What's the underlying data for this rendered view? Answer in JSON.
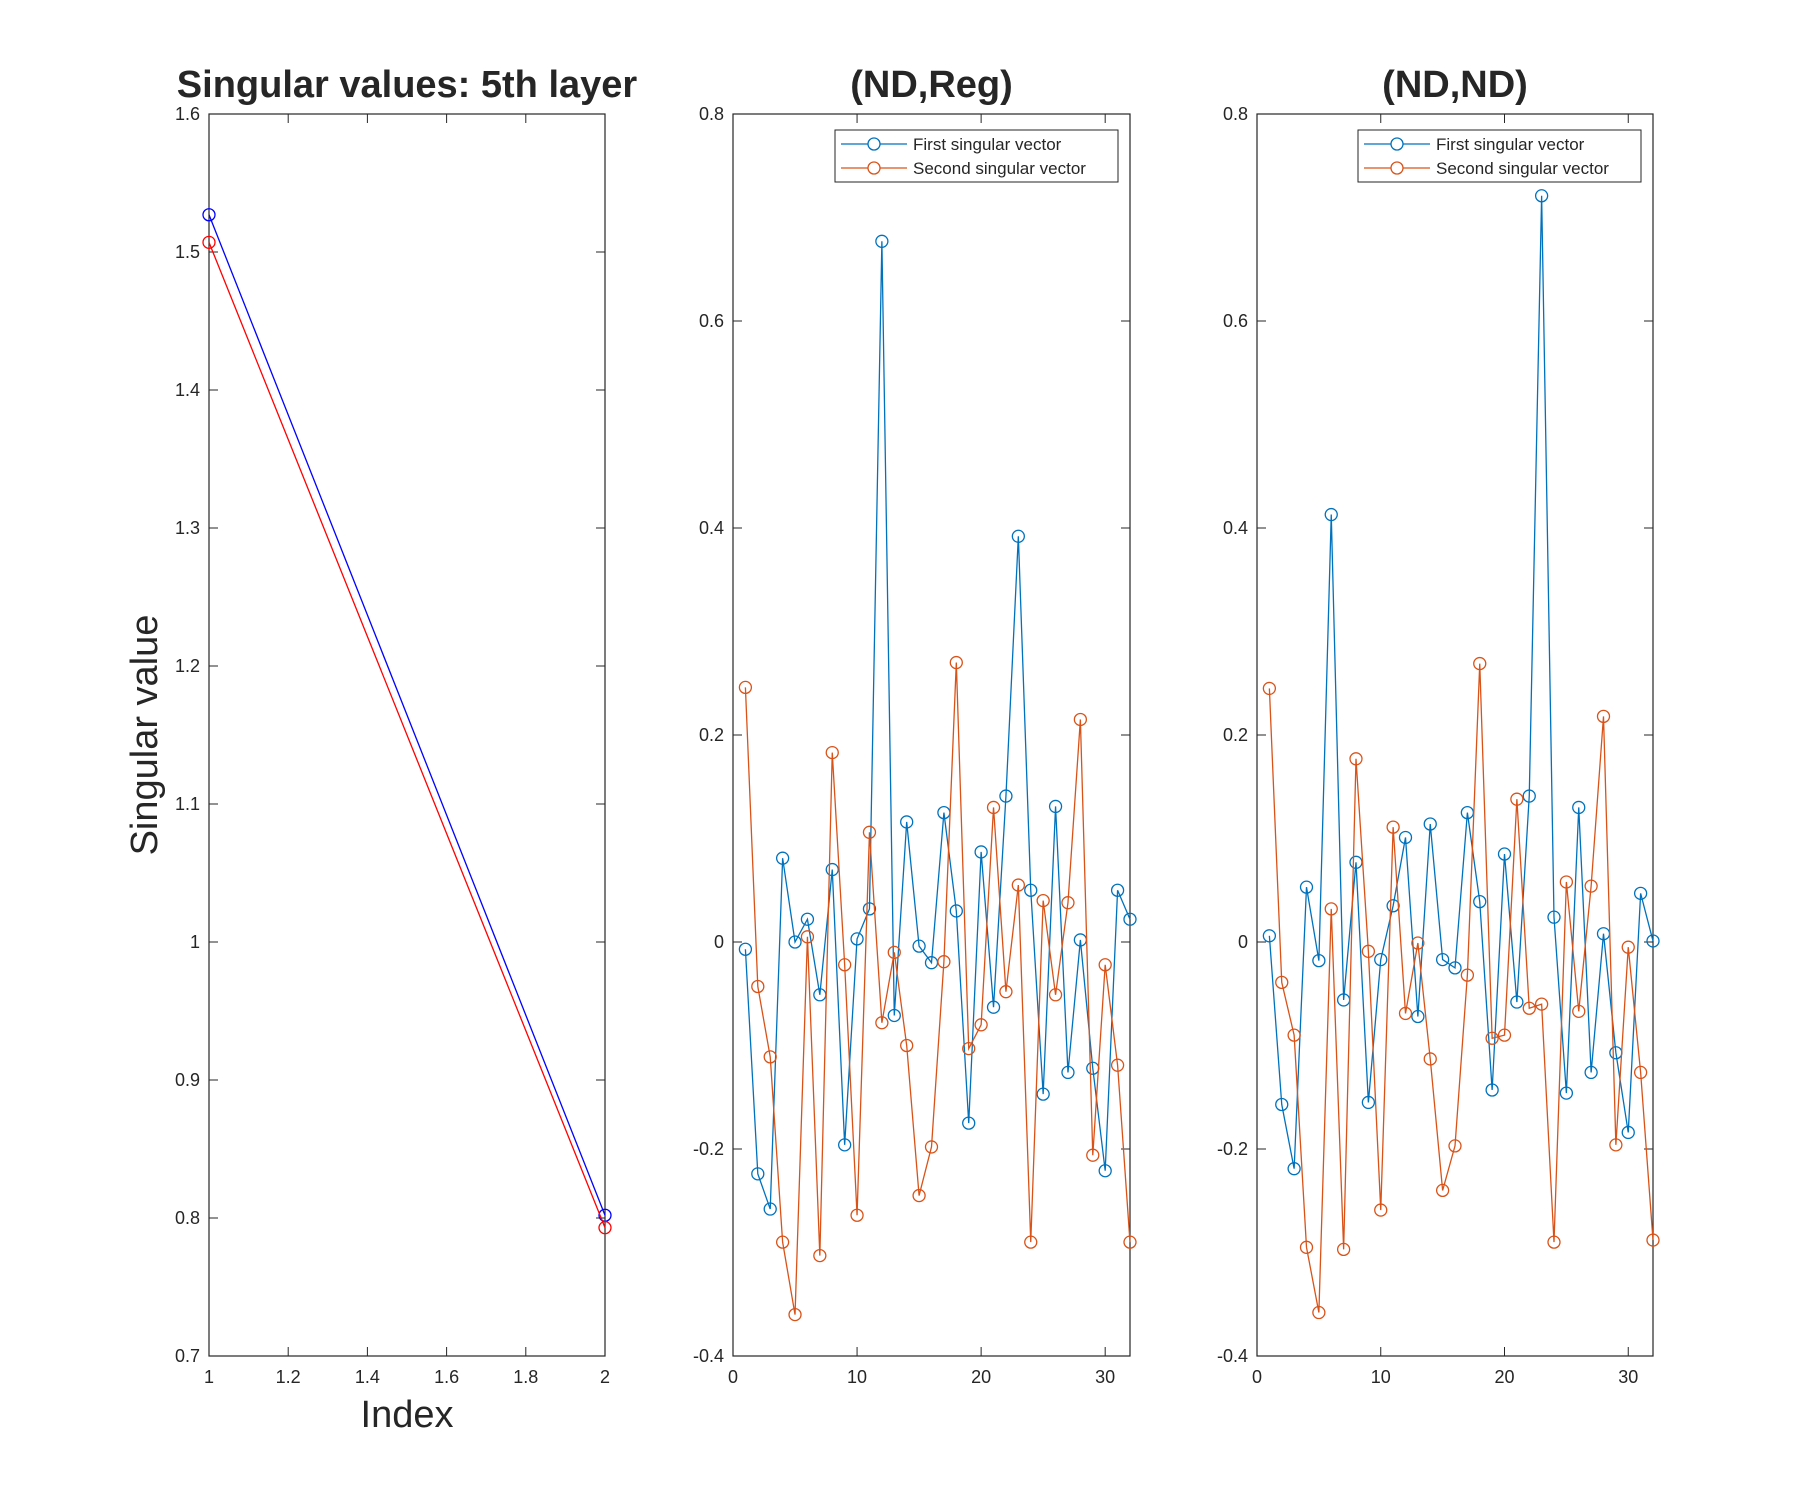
{
  "chart_data": [
    {
      "type": "line",
      "title": "Singular values: 5th layer",
      "xlabel": "Index",
      "ylabel": "Singular value",
      "xlim": [
        1,
        2
      ],
      "ylim": [
        0.7,
        1.6
      ],
      "xticks": [
        "1",
        "1.2",
        "1.4",
        "1.6",
        "1.8",
        "2"
      ],
      "yticks": [
        "0.7",
        "0.8",
        "0.9",
        "1",
        "1.1",
        "1.2",
        "1.3",
        "1.4",
        "1.5",
        "1.6"
      ],
      "grid": false,
      "series": [
        {
          "x": [
            1,
            2
          ],
          "values": [
            1.527,
            0.802
          ],
          "color": "#0000ff",
          "marker": "circle"
        },
        {
          "x": [
            1,
            2
          ],
          "values": [
            1.507,
            0.793
          ],
          "color": "#ff0000",
          "marker": "circle"
        }
      ]
    },
    {
      "type": "line",
      "title": "(ND,Reg)",
      "xlabel": "",
      "ylabel": "",
      "xlim": [
        0,
        32
      ],
      "ylim": [
        -0.4,
        0.8
      ],
      "xticks": [
        "0",
        "10",
        "20",
        "30"
      ],
      "yticks": [
        "-0.4",
        "-0.2",
        "0",
        "0.2",
        "0.4",
        "0.6",
        "0.8"
      ],
      "grid": false,
      "legend": "top-right",
      "series": [
        {
          "name": "First singular vector",
          "color": "#0072bd",
          "marker": "circle",
          "values": [
            -0.007,
            -0.224,
            -0.258,
            0.081,
            0.0,
            0.022,
            -0.051,
            0.07,
            -0.196,
            0.003,
            0.032,
            0.677,
            -0.071,
            0.116,
            -0.004,
            -0.02,
            0.125,
            0.03,
            -0.175,
            0.087,
            -0.063,
            0.141,
            0.392,
            0.05,
            -0.147,
            0.131,
            -0.126,
            0.002,
            -0.122,
            -0.221,
            0.05,
            0.022
          ]
        },
        {
          "name": "Second singular vector",
          "color": "#d95319",
          "marker": "circle",
          "values": [
            0.246,
            -0.043,
            -0.111,
            -0.29,
            -0.36,
            0.005,
            -0.303,
            0.183,
            -0.022,
            -0.264,
            0.106,
            -0.078,
            -0.01,
            -0.1,
            -0.245,
            -0.198,
            -0.019,
            0.27,
            -0.103,
            -0.08,
            0.13,
            -0.048,
            0.055,
            -0.29,
            0.04,
            -0.051,
            0.038,
            0.215,
            -0.206,
            -0.022,
            -0.119,
            -0.29
          ]
        }
      ]
    },
    {
      "type": "line",
      "title": "(ND,ND)",
      "xlabel": "",
      "ylabel": "",
      "xlim": [
        0,
        32
      ],
      "ylim": [
        -0.4,
        0.8
      ],
      "xticks": [
        "0",
        "10",
        "20",
        "30"
      ],
      "yticks": [
        "-0.4",
        "-0.2",
        "0",
        "0.2",
        "0.4",
        "0.6",
        "0.8"
      ],
      "grid": false,
      "legend": "top-right",
      "series": [
        {
          "name": "First singular vector",
          "color": "#0072bd",
          "marker": "circle",
          "values": [
            0.006,
            -0.157,
            -0.219,
            0.053,
            -0.018,
            0.413,
            -0.056,
            0.077,
            -0.155,
            -0.017,
            0.035,
            0.101,
            -0.072,
            0.114,
            -0.017,
            -0.025,
            0.125,
            0.039,
            -0.143,
            0.085,
            -0.058,
            0.141,
            0.721,
            0.024,
            -0.146,
            0.13,
            -0.126,
            0.008,
            -0.107,
            -0.184,
            0.047,
            0.001
          ]
        },
        {
          "name": "Second singular vector",
          "color": "#d95319",
          "marker": "circle",
          "values": [
            0.245,
            -0.039,
            -0.09,
            -0.295,
            -0.358,
            0.032,
            -0.297,
            0.177,
            -0.009,
            -0.259,
            0.111,
            -0.069,
            -0.001,
            -0.113,
            -0.24,
            -0.197,
            -0.032,
            0.269,
            -0.093,
            -0.09,
            0.138,
            -0.064,
            -0.06,
            -0.29,
            0.058,
            -0.067,
            0.054,
            0.218,
            -0.196,
            -0.005,
            -0.126,
            -0.288
          ]
        }
      ]
    }
  ]
}
